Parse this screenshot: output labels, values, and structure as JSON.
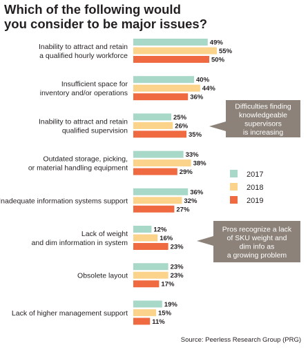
{
  "title_line1": "Which of the following would",
  "title_line2": "you consider to be major issues?",
  "source": "Source: Peerless Research Group (PRG)",
  "colors": {
    "2017": "#a8d8c8",
    "2018": "#fbd38b",
    "2019": "#ef6a40",
    "callout": "#8c8279"
  },
  "chart_data": {
    "type": "bar",
    "orientation": "horizontal",
    "categories": [
      [
        "Inability to attract and retain",
        "a qualified hourly workforce"
      ],
      [
        "Insufficient space for",
        "inventory and/or operations"
      ],
      [
        "Inability to attract and retain",
        "qualified supervision"
      ],
      [
        "Outdated storage, picking,",
        "or material handling equipment"
      ],
      [
        "Inadequate information systems support"
      ],
      [
        "Lack of weight",
        "and dim information in system"
      ],
      [
        "Obsolete layout"
      ],
      [
        "Lack of higher management support"
      ]
    ],
    "series": [
      {
        "name": "2017",
        "values": [
          49,
          40,
          25,
          33,
          36,
          12,
          23,
          19
        ]
      },
      {
        "name": "2018",
        "values": [
          55,
          44,
          26,
          38,
          32,
          16,
          23,
          15
        ]
      },
      {
        "name": "2019",
        "values": [
          50,
          36,
          35,
          29,
          27,
          23,
          17,
          11
        ]
      }
    ],
    "value_suffix": "%",
    "legend": [
      "2017",
      "2018",
      "2019"
    ],
    "legend_position": "right",
    "annotations": [
      {
        "lines": [
          "Difficulties finding",
          "knowledgeable",
          "supervisors",
          "is increasing"
        ],
        "points_to_category": 2
      },
      {
        "lines": [
          "Pros recognize a lack",
          "of SKU weight and",
          "dim info as",
          "a growing problem"
        ],
        "points_to_category": 5
      }
    ]
  }
}
